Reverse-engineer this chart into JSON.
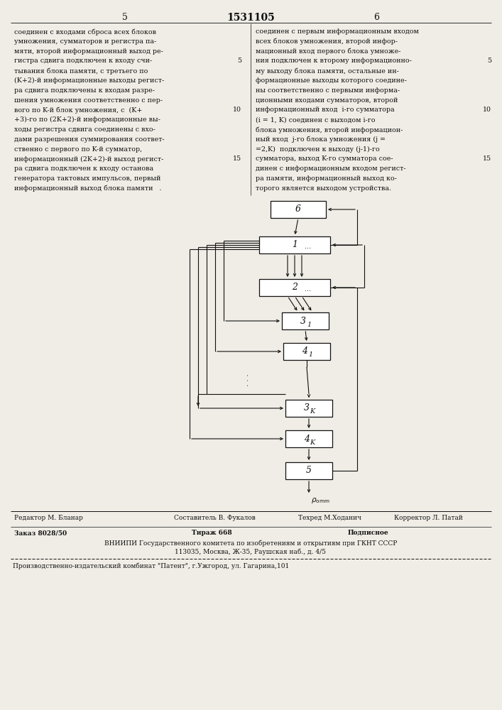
{
  "page_number_left": "5",
  "page_number_center": "1531105",
  "page_number_right": "6",
  "text_left": [
    "соединен с входами сброса всех блоков",
    "умножения, сумматоров и регистра па-",
    "мяти, второй информационный выход ре-",
    "гистра сдвига подключен к входу счи-",
    "тывания блока памяти, с третьего по",
    "(K+2)-й информационные выходы регист-",
    "ра сдвига подключены к входам разре-",
    "шения умножения соответственно с пер-",
    "вого по K-й блок умножения, с  (K+",
    "+3)-го по (2K+2)-й информационные вы-",
    "ходы регистра сдвига соединены с вхо-",
    "дами разрешения суммирования соответ-",
    "ственно с первого по K-й сумматор,",
    "информационный (2K+2)-й выход регист-",
    "ра сдвига подключен к входу останова",
    "генератора тактовых импульсов, первый",
    "информационный выход блока памяти   ."
  ],
  "text_right": [
    "соединен с первым информационным входом",
    "всех блоков умножения, второй инфор-",
    "мационный вход первого блока умноже-",
    "ния подключен к второму информационно-",
    "му выходу блока памяти, остальные ин-",
    "формационные выходы которого соедине-",
    "ны соответственно с первыми информа-",
    "ционными входами сумматоров, второй",
    "информационный вход  i-го сумматора",
    "(i = 1, K) соединен с выходом i-го",
    "блока умножения, второй информацион-",
    "ный вход  j-го блока умножения (j =",
    "=2,K)  подключен к выходу (j-1)-го",
    "сумматора, выход K-го сумматора сое-",
    "динен с информационным входом регист-",
    "ра памяти, информационный выход ко-",
    "торого является выходом устройства."
  ],
  "footer_editor": "Редактор М. Бланар",
  "footer_composer": "Составитель В. Фукалов",
  "footer_tech": "Техред М.Ходанич",
  "footer_corrector": "Корректор Л. Патай",
  "footer_order": "Заказ 8028/50",
  "footer_circulation": "Тираж 668",
  "footer_subscription": "Подписное",
  "footer_vniiipi": "ВНИИПИ Государственного комитета по изобретениям и открытиям при ГКНТ СССР",
  "footer_address": "113035, Москва, Ж-35, Раушская наб., д. 4/5",
  "footer_publisher": "Производственно-издательский комбинат \"Патент\", г.Ужгород, ул. Гагарина,101",
  "bg_color": "#f0ede6",
  "text_color": "#111111"
}
